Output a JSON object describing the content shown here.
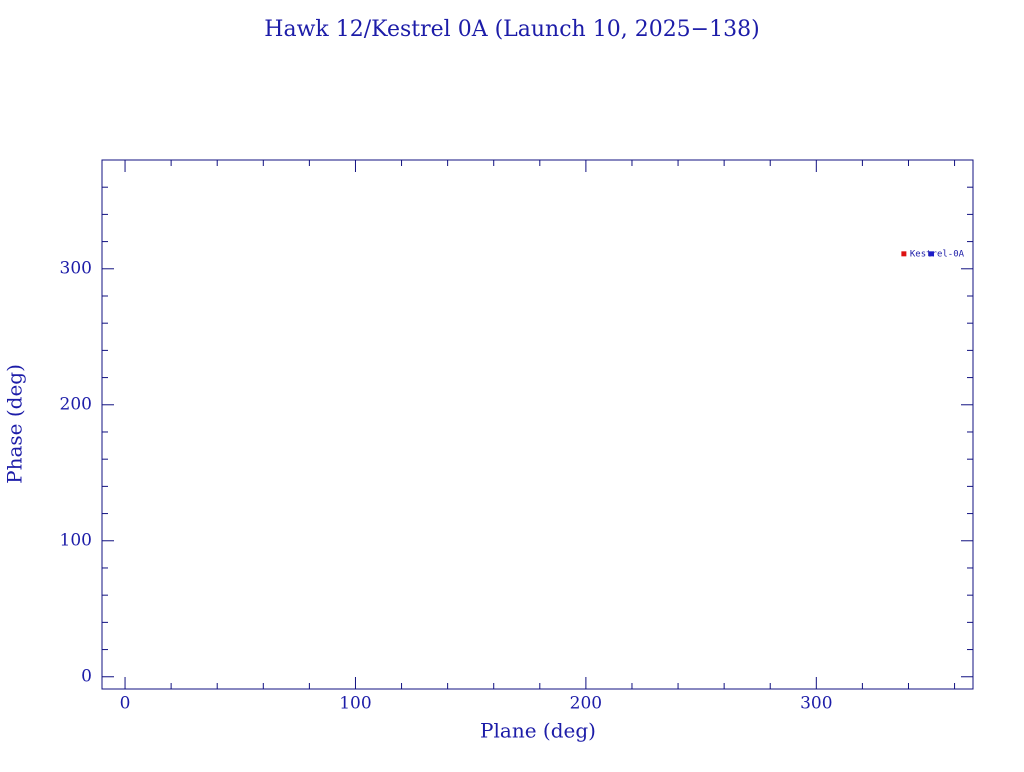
{
  "chart_data": {
    "type": "scatter",
    "title": "Hawk 12/Kestrel 0A (Launch 10, 2025−138)",
    "x_label": "Plane (deg)",
    "y_label": "Phase (deg)",
    "xlim": [
      -10,
      368
    ],
    "ylim": [
      -9,
      380
    ],
    "xticks": [
      0,
      100,
      200,
      300
    ],
    "yticks": [
      0,
      100,
      200,
      300
    ],
    "xminorticks": [
      20,
      40,
      60,
      80,
      120,
      140,
      160,
      180,
      220,
      240,
      260,
      280,
      320,
      340,
      360
    ],
    "yminorticks": [
      20,
      40,
      60,
      80,
      120,
      140,
      160,
      180,
      220,
      240,
      260,
      280,
      320,
      340,
      360
    ],
    "axis_color": "#101080",
    "points": [
      {
        "x": 338,
        "y": 311,
        "color": "#dd1111",
        "label": "Kestrel-0A"
      },
      {
        "x": 350,
        "y": 311,
        "color": "#1c1cc8"
      }
    ]
  }
}
